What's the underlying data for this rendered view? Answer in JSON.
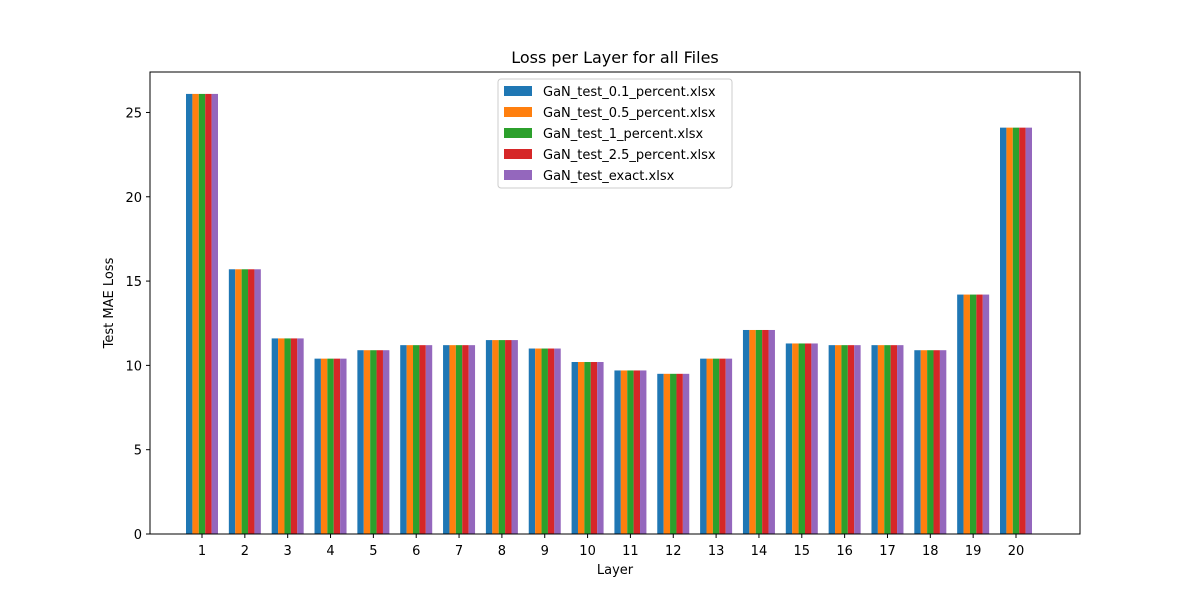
{
  "chart_data": {
    "type": "bar",
    "title": "Loss per Layer for all Files",
    "xlabel": "Layer",
    "ylabel": "Test MAE Loss",
    "ylim": [
      0,
      27.4
    ],
    "yticks": [
      0,
      5,
      10,
      15,
      20,
      25
    ],
    "categories": [
      "1",
      "2",
      "3",
      "4",
      "5",
      "6",
      "7",
      "8",
      "9",
      "10",
      "11",
      "12",
      "13",
      "14",
      "15",
      "16",
      "17",
      "18",
      "19",
      "20"
    ],
    "legend_position": "top-center",
    "grid": false,
    "series": [
      {
        "name": "GaN_test_0.1_percent.xlsx",
        "color": "#1f77b4",
        "values": [
          26.1,
          15.7,
          11.6,
          10.4,
          10.9,
          11.2,
          11.2,
          11.5,
          11.0,
          10.2,
          9.7,
          9.5,
          10.4,
          12.1,
          11.3,
          11.2,
          11.2,
          10.9,
          14.2,
          24.1
        ]
      },
      {
        "name": "GaN_test_0.5_percent.xlsx",
        "color": "#ff7f0e",
        "values": [
          26.1,
          15.7,
          11.6,
          10.4,
          10.9,
          11.2,
          11.2,
          11.5,
          11.0,
          10.2,
          9.7,
          9.5,
          10.4,
          12.1,
          11.3,
          11.2,
          11.2,
          10.9,
          14.2,
          24.1
        ]
      },
      {
        "name": "GaN_test_1_percent.xlsx",
        "color": "#2ca02c",
        "values": [
          26.1,
          15.7,
          11.6,
          10.4,
          10.9,
          11.2,
          11.2,
          11.5,
          11.0,
          10.2,
          9.7,
          9.5,
          10.4,
          12.1,
          11.3,
          11.2,
          11.2,
          10.9,
          14.2,
          24.1
        ]
      },
      {
        "name": "GaN_test_2.5_percent.xlsx",
        "color": "#d62728",
        "values": [
          26.1,
          15.7,
          11.6,
          10.4,
          10.9,
          11.2,
          11.2,
          11.5,
          11.0,
          10.2,
          9.7,
          9.5,
          10.4,
          12.1,
          11.3,
          11.2,
          11.2,
          10.9,
          14.2,
          24.1
        ]
      },
      {
        "name": "GaN_test_exact.xlsx",
        "color": "#9467bd",
        "values": [
          26.1,
          15.7,
          11.6,
          10.4,
          10.9,
          11.2,
          11.2,
          11.5,
          11.0,
          10.2,
          9.7,
          9.5,
          10.4,
          12.1,
          11.3,
          11.2,
          11.2,
          10.9,
          14.2,
          24.1
        ]
      }
    ]
  }
}
